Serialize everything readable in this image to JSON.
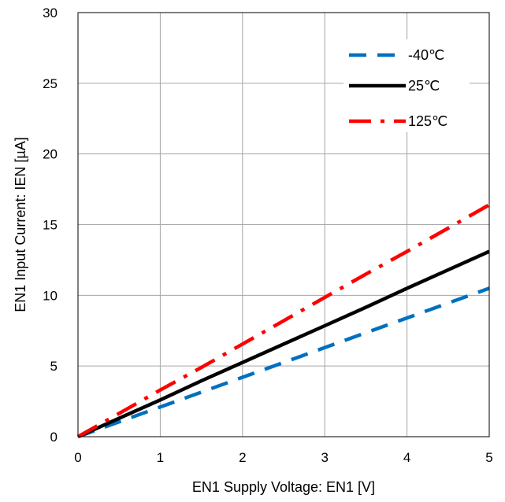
{
  "chart_data": {
    "type": "line",
    "title": "",
    "xlabel": "EN1 Supply Voltage: EN1 [V]",
    "ylabel": "EN1 Input Current: IEN [µA]",
    "xlim": [
      0,
      5
    ],
    "ylim": [
      0,
      30
    ],
    "x_ticks": [
      "0",
      "1",
      "2",
      "3",
      "4",
      "5"
    ],
    "y_ticks": [
      "0",
      "5",
      "10",
      "15",
      "20",
      "25",
      "30"
    ],
    "grid": true,
    "legend_position": "top-right",
    "series": [
      {
        "name": "-40℃",
        "color": "#0070C0",
        "style": "dashed",
        "x": [
          0,
          0.5,
          1,
          1.5,
          2,
          2.5,
          3,
          3.5,
          4,
          4.5,
          5
        ],
        "y": [
          0,
          1.05,
          2.1,
          3.15,
          4.2,
          5.25,
          6.3,
          7.35,
          8.4,
          9.45,
          10.5
        ]
      },
      {
        "name": "25℃",
        "color": "#000000",
        "style": "solid",
        "x": [
          0,
          0.5,
          1,
          1.5,
          2,
          2.5,
          3,
          3.5,
          4,
          4.5,
          5
        ],
        "y": [
          0,
          1.3,
          2.6,
          3.95,
          5.25,
          6.55,
          7.85,
          9.15,
          10.5,
          11.8,
          13.1
        ]
      },
      {
        "name": "125℃",
        "color": "#FF0000",
        "style": "dash-dot",
        "x": [
          0,
          0.5,
          1,
          1.5,
          2,
          2.5,
          3,
          3.5,
          4,
          4.5,
          5
        ],
        "y": [
          0,
          1.65,
          3.3,
          4.9,
          6.55,
          8.2,
          9.85,
          11.5,
          13.1,
          14.75,
          16.4
        ]
      }
    ]
  }
}
